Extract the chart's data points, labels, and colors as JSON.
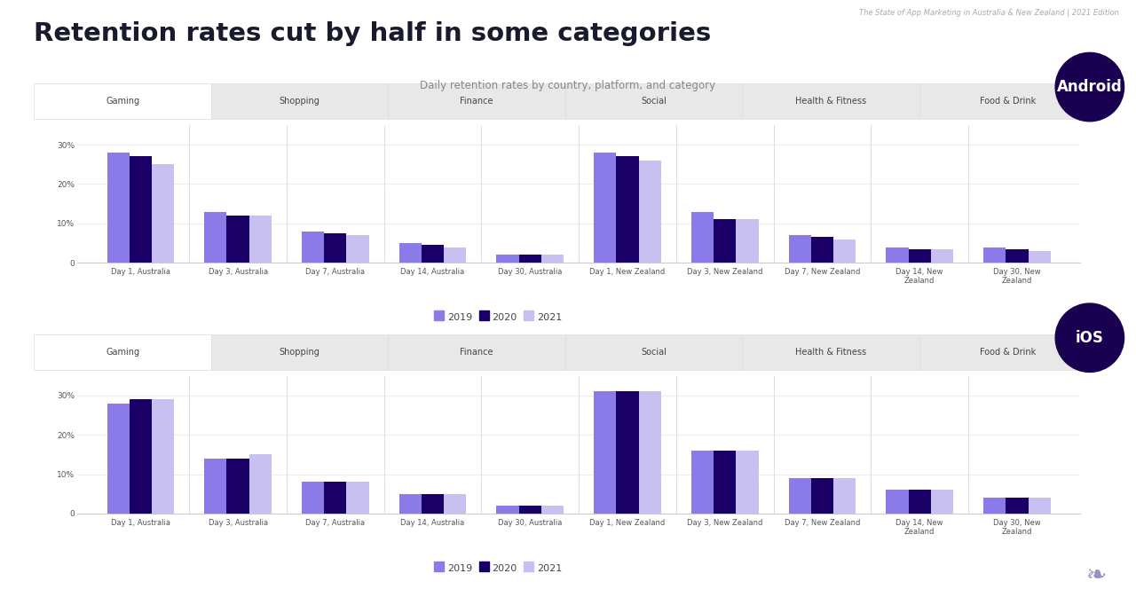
{
  "title": "Retention rates cut by half in some categories",
  "subtitle": "Daily retention rates by country, platform, and category",
  "top_label": "The State of App Marketing in Australia & New Zealand | 2021 Edition",
  "categories_tabs": [
    "Gaming",
    "Shopping",
    "Finance",
    "Social",
    "Health & Fitness",
    "Food & Drink"
  ],
  "x_labels": [
    "Day 1, Australia",
    "Day 3, Australia",
    "Day 7, Australia",
    "Day 14, Australia",
    "Day 30, Australia",
    "Day 1, New Zealand",
    "Day 3, New Zealand",
    "Day 7, New Zealand",
    "Day 14, New\nZealand",
    "Day 30, New\nZealand"
  ],
  "legend_labels": [
    "2019",
    "2020",
    "2021"
  ],
  "color_2019": "#8B7BE8",
  "color_2020": "#1A0066",
  "color_2021": "#C8C0F0",
  "android_data": {
    "2019": [
      28,
      13,
      8,
      5,
      2,
      28,
      13,
      7,
      4,
      4
    ],
    "2020": [
      27,
      12,
      7.5,
      4.5,
      2,
      27,
      11,
      6.5,
      3.5,
      3.5
    ],
    "2021": [
      25,
      12,
      7,
      4,
      2,
      26,
      11,
      6,
      3.5,
      3
    ]
  },
  "ios_data": {
    "2019": [
      28,
      14,
      8,
      5,
      2,
      31,
      16,
      9,
      6,
      4
    ],
    "2020": [
      29,
      14,
      8,
      5,
      2,
      31,
      16,
      9,
      6,
      4
    ],
    "2021": [
      29,
      15,
      8,
      5,
      2,
      31,
      16,
      9,
      6,
      4
    ]
  },
  "bg_color": "#FFFFFF",
  "title_color": "#1a1a2e",
  "subtitle_color": "#888888",
  "yticks": [
    0,
    10,
    20,
    30
  ],
  "ytick_labels": [
    "0",
    "10%",
    "20%",
    "30%"
  ],
  "ylim": [
    0,
    35
  ],
  "circle_color": "#1A0050",
  "divider_color": "#1A0050",
  "panel_border_color": "#dddddd",
  "tab_active_color": "#FFFFFF",
  "tab_inactive_color": "#E8E8E8",
  "grid_color": "#eeeeee",
  "spine_color": "#cccccc"
}
